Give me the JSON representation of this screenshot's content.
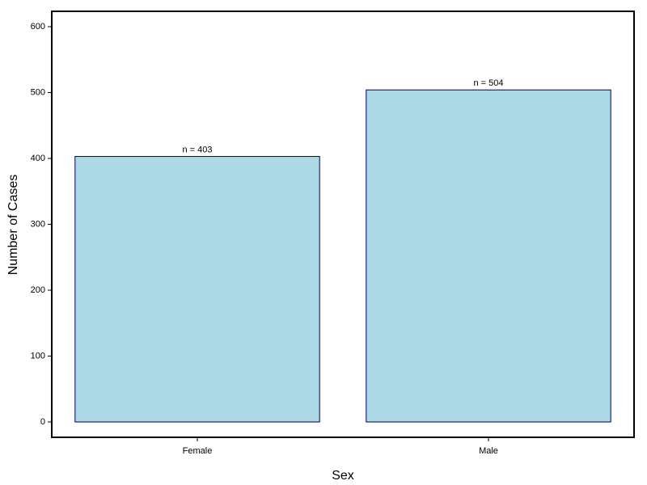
{
  "chart_data": {
    "type": "bar",
    "x_label": "Sex",
    "y_label": "Number of Cases",
    "categories": [
      "Female",
      "Male"
    ],
    "values": [
      403,
      504
    ],
    "value_labels": [
      "n =  403",
      "n =  504"
    ],
    "color": "#add8e6",
    "edge_color": "#000066",
    "ylim": [
      -23.3,
      623.3
    ],
    "yticks": [
      0,
      100,
      200,
      300,
      400,
      500,
      600
    ],
    "grid": false
  }
}
